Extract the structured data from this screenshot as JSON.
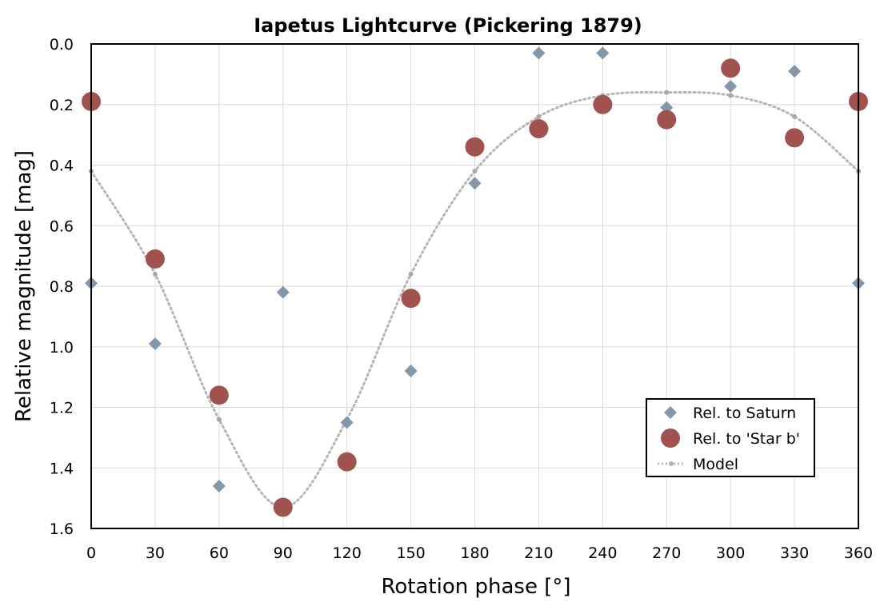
{
  "chart_data": {
    "type": "scatter",
    "title": "Iapetus Lightcurve (Pickering 1879)",
    "xlabel": "Rotation phase [°]",
    "ylabel": "Relative magnitude [mag]",
    "xlim": [
      0,
      360
    ],
    "ylim": [
      0.0,
      1.6
    ],
    "y_inverted": true,
    "x_ticks": [
      0,
      30,
      60,
      90,
      120,
      150,
      180,
      210,
      240,
      270,
      300,
      330,
      360
    ],
    "y_ticks": [
      0.0,
      0.2,
      0.4,
      0.6,
      0.8,
      1.0,
      1.2,
      1.4,
      1.6
    ],
    "y_tick_labels": [
      "0.0",
      "0.2",
      "0.4",
      "0.6",
      "0.8",
      "1.0",
      "1.2",
      "1.4",
      "1.6"
    ],
    "grid": true,
    "legend_position": "bottom-right",
    "series": [
      {
        "name": "Rel. to Saturn",
        "marker": "diamond",
        "color": "#8497A9",
        "x": [
          0,
          30,
          60,
          90,
          120,
          150,
          180,
          210,
          240,
          270,
          300,
          330,
          360
        ],
        "y": [
          0.79,
          0.99,
          1.46,
          0.82,
          1.25,
          1.08,
          0.46,
          0.03,
          0.03,
          0.21,
          0.14,
          0.09,
          0.79
        ]
      },
      {
        "name": "Rel. to 'Star b'",
        "marker": "circle",
        "color": "#A0524F",
        "x": [
          0,
          30,
          60,
          90,
          120,
          150,
          180,
          210,
          240,
          270,
          300,
          330,
          360
        ],
        "y": [
          0.19,
          0.71,
          1.16,
          1.53,
          1.38,
          0.84,
          0.34,
          0.28,
          0.2,
          0.25,
          0.08,
          0.31,
          0.19
        ]
      },
      {
        "name": "Model",
        "marker": "dotted-line",
        "color": "#B5B5B5",
        "x": [
          0,
          30,
          60,
          90,
          120,
          150,
          180,
          210,
          240,
          270,
          300,
          330,
          360
        ],
        "y": [
          0.42,
          0.76,
          1.24,
          1.53,
          1.24,
          0.76,
          0.42,
          0.24,
          0.17,
          0.16,
          0.17,
          0.24,
          0.42
        ]
      }
    ]
  }
}
